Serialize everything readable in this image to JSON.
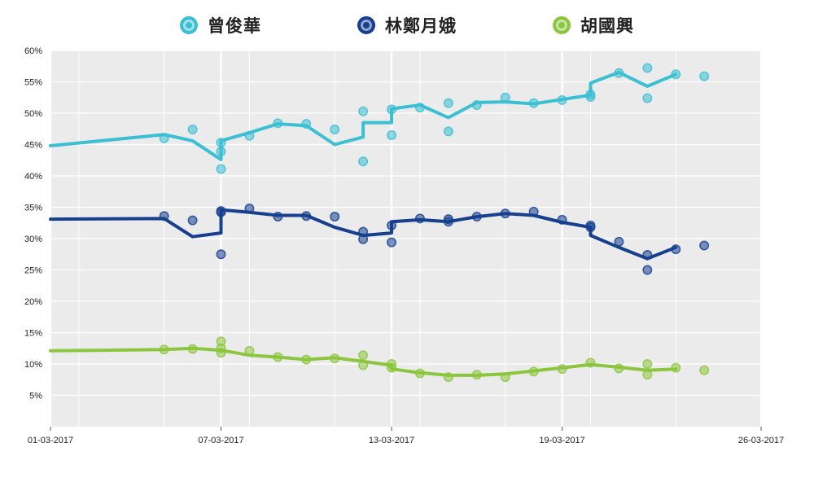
{
  "chart_data": {
    "type": "line",
    "title": "",
    "xlabel": "",
    "ylabel": "",
    "x_ticks": [
      "01-03-2017",
      "07-03-2017",
      "13-03-2017",
      "19-03-2017",
      "26-03-2017"
    ],
    "y_ticks": [
      "5%",
      "10%",
      "15%",
      "20%",
      "25%",
      "30%",
      "35%",
      "40%",
      "45%",
      "50%",
      "55%",
      "60%"
    ],
    "ylim": [
      0,
      60
    ],
    "xlim": [
      "2017-03-01",
      "2017-03-26"
    ],
    "grid": true,
    "legend_position": "top-center",
    "series": [
      {
        "name": "曾俊華",
        "color": "#3bbfd3",
        "line": [
          [
            "2017-03-01",
            44.8
          ],
          [
            "2017-03-05",
            46.6
          ],
          [
            "2017-03-06",
            45.6
          ],
          [
            "2017-03-07",
            42.6
          ],
          [
            "2017-03-07",
            45.6
          ],
          [
            "2017-03-08",
            46.9
          ],
          [
            "2017-03-09",
            48.3
          ],
          [
            "2017-03-10",
            48.0
          ],
          [
            "2017-03-11",
            45.0
          ],
          [
            "2017-03-12",
            46.2
          ],
          [
            "2017-03-12",
            48.5
          ],
          [
            "2017-03-13",
            48.5
          ],
          [
            "2017-03-13",
            50.7
          ],
          [
            "2017-03-14",
            51.3
          ],
          [
            "2017-03-15",
            49.3
          ],
          [
            "2017-03-16",
            51.7
          ],
          [
            "2017-03-17",
            51.8
          ],
          [
            "2017-03-18",
            51.5
          ],
          [
            "2017-03-19",
            52.2
          ],
          [
            "2017-03-20",
            52.9
          ],
          [
            "2017-03-20",
            54.8
          ],
          [
            "2017-03-21",
            56.5
          ],
          [
            "2017-03-22",
            54.3
          ],
          [
            "2017-03-23",
            56.2
          ]
        ],
        "points": [
          [
            "2017-03-05",
            46.0
          ],
          [
            "2017-03-06",
            47.4
          ],
          [
            "2017-03-07",
            41.1
          ],
          [
            "2017-03-07",
            43.9
          ],
          [
            "2017-03-07",
            45.3
          ],
          [
            "2017-03-08",
            46.4
          ],
          [
            "2017-03-09",
            48.4
          ],
          [
            "2017-03-10",
            48.3
          ],
          [
            "2017-03-11",
            47.4
          ],
          [
            "2017-03-12",
            42.3
          ],
          [
            "2017-03-12",
            50.3
          ],
          [
            "2017-03-13",
            46.5
          ],
          [
            "2017-03-13",
            50.6
          ],
          [
            "2017-03-14",
            50.9
          ],
          [
            "2017-03-15",
            47.1
          ],
          [
            "2017-03-15",
            51.6
          ],
          [
            "2017-03-16",
            51.3
          ],
          [
            "2017-03-17",
            52.5
          ],
          [
            "2017-03-18",
            51.6
          ],
          [
            "2017-03-19",
            52.1
          ],
          [
            "2017-03-20",
            52.6
          ],
          [
            "2017-03-20",
            53.0
          ],
          [
            "2017-03-21",
            56.4
          ],
          [
            "2017-03-22",
            52.4
          ],
          [
            "2017-03-22",
            57.2
          ],
          [
            "2017-03-23",
            56.2
          ],
          [
            "2017-03-24",
            55.9
          ]
        ]
      },
      {
        "name": "林鄭月娥",
        "color": "#16408f",
        "line": [
          [
            "2017-03-01",
            33.1
          ],
          [
            "2017-03-05",
            33.2
          ],
          [
            "2017-03-06",
            30.3
          ],
          [
            "2017-03-07",
            30.9
          ],
          [
            "2017-03-07",
            34.6
          ],
          [
            "2017-03-08",
            34.2
          ],
          [
            "2017-03-09",
            33.7
          ],
          [
            "2017-03-10",
            33.7
          ],
          [
            "2017-03-11",
            31.8
          ],
          [
            "2017-03-12",
            30.5
          ],
          [
            "2017-03-13",
            30.9
          ],
          [
            "2017-03-13",
            32.7
          ],
          [
            "2017-03-14",
            33.0
          ],
          [
            "2017-03-15",
            32.7
          ],
          [
            "2017-03-16",
            33.5
          ],
          [
            "2017-03-17",
            34.0
          ],
          [
            "2017-03-18",
            33.7
          ],
          [
            "2017-03-19",
            32.6
          ],
          [
            "2017-03-20",
            31.8
          ],
          [
            "2017-03-20",
            30.5
          ],
          [
            "2017-03-21",
            28.6
          ],
          [
            "2017-03-22",
            26.8
          ],
          [
            "2017-03-23",
            28.6
          ]
        ],
        "points": [
          [
            "2017-03-05",
            33.6
          ],
          [
            "2017-03-06",
            32.9
          ],
          [
            "2017-03-07",
            27.5
          ],
          [
            "2017-03-07",
            34.2
          ],
          [
            "2017-03-07",
            34.4
          ],
          [
            "2017-03-08",
            34.8
          ],
          [
            "2017-03-09",
            33.5
          ],
          [
            "2017-03-10",
            33.6
          ],
          [
            "2017-03-11",
            33.5
          ],
          [
            "2017-03-12",
            29.9
          ],
          [
            "2017-03-12",
            31.1
          ],
          [
            "2017-03-13",
            29.4
          ],
          [
            "2017-03-13",
            32.1
          ],
          [
            "2017-03-14",
            33.2
          ],
          [
            "2017-03-15",
            32.7
          ],
          [
            "2017-03-15",
            33.1
          ],
          [
            "2017-03-16",
            33.5
          ],
          [
            "2017-03-17",
            34.0
          ],
          [
            "2017-03-18",
            34.3
          ],
          [
            "2017-03-19",
            33.0
          ],
          [
            "2017-03-20",
            31.8
          ],
          [
            "2017-03-20",
            32.1
          ],
          [
            "2017-03-21",
            29.5
          ],
          [
            "2017-03-22",
            25.0
          ],
          [
            "2017-03-22",
            27.4
          ],
          [
            "2017-03-23",
            28.3
          ],
          [
            "2017-03-24",
            28.9
          ]
        ]
      },
      {
        "name": "胡國興",
        "color": "#8cc63f",
        "line": [
          [
            "2017-03-01",
            12.1
          ],
          [
            "2017-03-05",
            12.3
          ],
          [
            "2017-03-06",
            12.5
          ],
          [
            "2017-03-07",
            12.2
          ],
          [
            "2017-03-08",
            11.4
          ],
          [
            "2017-03-09",
            11.1
          ],
          [
            "2017-03-10",
            10.7
          ],
          [
            "2017-03-11",
            11.0
          ],
          [
            "2017-03-12",
            10.4
          ],
          [
            "2017-03-13",
            9.8
          ],
          [
            "2017-03-13",
            9.2
          ],
          [
            "2017-03-14",
            8.6
          ],
          [
            "2017-03-15",
            8.2
          ],
          [
            "2017-03-16",
            8.2
          ],
          [
            "2017-03-17",
            8.4
          ],
          [
            "2017-03-18",
            8.9
          ],
          [
            "2017-03-19",
            9.4
          ],
          [
            "2017-03-20",
            9.9
          ],
          [
            "2017-03-21",
            9.5
          ],
          [
            "2017-03-22",
            9.0
          ],
          [
            "2017-03-23",
            9.2
          ]
        ],
        "points": [
          [
            "2017-03-05",
            12.3
          ],
          [
            "2017-03-06",
            12.4
          ],
          [
            "2017-03-07",
            11.8
          ],
          [
            "2017-03-07",
            13.6
          ],
          [
            "2017-03-07",
            12.5
          ],
          [
            "2017-03-08",
            12.1
          ],
          [
            "2017-03-09",
            11.1
          ],
          [
            "2017-03-10",
            10.7
          ],
          [
            "2017-03-11",
            10.9
          ],
          [
            "2017-03-12",
            9.8
          ],
          [
            "2017-03-12",
            11.4
          ],
          [
            "2017-03-13",
            10.0
          ],
          [
            "2017-03-13",
            9.4
          ],
          [
            "2017-03-14",
            8.5
          ],
          [
            "2017-03-15",
            7.9
          ],
          [
            "2017-03-16",
            8.3
          ],
          [
            "2017-03-17",
            7.9
          ],
          [
            "2017-03-18",
            8.8
          ],
          [
            "2017-03-19",
            9.2
          ],
          [
            "2017-03-20",
            10.2
          ],
          [
            "2017-03-21",
            9.3
          ],
          [
            "2017-03-22",
            8.3
          ],
          [
            "2017-03-22",
            10.0
          ],
          [
            "2017-03-23",
            9.4
          ],
          [
            "2017-03-24",
            9.0
          ]
        ]
      }
    ]
  }
}
